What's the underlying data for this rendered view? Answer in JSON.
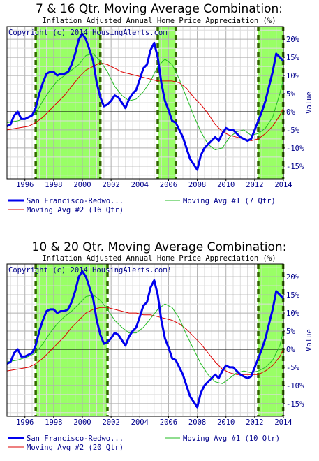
{
  "chart_data": [
    {
      "type": "line",
      "title": "7 & 16 Qtr. Moving Average Combination:",
      "subtitle": "Inflation Adjusted Annual Home Price Appreciation (%)",
      "copyright": "Copyright (c) 2014 HousingAlerts.com",
      "ylabel": "Value",
      "xlim": [
        1994.75,
        2014.0
      ],
      "ylim": [
        -18.5,
        23.5
      ],
      "x_ticks": [
        1996,
        1998,
        2000,
        2002,
        2004,
        2006,
        2008,
        2010,
        2012,
        2014
      ],
      "x_tick_labels": [
        "1996",
        "1998",
        "2000",
        "2002",
        "2004",
        "2006",
        "2008",
        "2010",
        "2012",
        "2014"
      ],
      "y_ticks": [
        -15,
        -10,
        -5,
        0,
        5,
        10,
        15,
        20
      ],
      "y_tick_labels": [
        "-15%",
        "-10%",
        "-5%",
        "0%",
        "5%",
        "10%",
        "15%",
        "20%"
      ],
      "green_zones": [
        [
          1996.75,
          2001.25
        ],
        [
          2005.25,
          2006.5
        ],
        [
          2012.25,
          2014.0
        ]
      ],
      "colors": {
        "main": "#0000ee",
        "ma1": "#22bb22",
        "ma2": "#dd0000",
        "zone": "#99ff66",
        "divider": "#336600"
      },
      "series": [
        {
          "name": "San Francisco-Redwo...",
          "color": "#0000ee",
          "x": [
            1994.75,
            1995.0,
            1995.25,
            1995.5,
            1995.75,
            1996.0,
            1996.25,
            1996.5,
            1996.75,
            1997.0,
            1997.25,
            1997.5,
            1997.75,
            1998.0,
            1998.25,
            1998.5,
            1998.75,
            1999.0,
            1999.25,
            1999.5,
            1999.75,
            2000.0,
            2000.25,
            2000.5,
            2000.75,
            2001.0,
            2001.25,
            2001.5,
            2001.75,
            2002.0,
            2002.25,
            2002.5,
            2002.75,
            2003.0,
            2003.25,
            2003.5,
            2003.75,
            2004.0,
            2004.25,
            2004.5,
            2004.75,
            2005.0,
            2005.25,
            2005.5,
            2005.75,
            2006.0,
            2006.25,
            2006.5,
            2006.75,
            2007.0,
            2007.25,
            2007.5,
            2007.75,
            2008.0,
            2008.25,
            2008.5,
            2008.75,
            2009.0,
            2009.25,
            2009.5,
            2009.75,
            2010.0,
            2010.25,
            2010.5,
            2010.75,
            2011.0,
            2011.25,
            2011.5,
            2011.75,
            2012.0,
            2012.25,
            2012.5,
            2012.75,
            2013.0,
            2013.25,
            2013.5,
            2013.75,
            2014.0
          ],
          "values": [
            -4,
            -3.5,
            -1,
            0,
            -2,
            -2,
            -1.5,
            -1,
            1,
            5,
            8,
            10.5,
            11,
            11,
            10,
            10.5,
            10.5,
            11,
            13,
            16,
            20,
            21.5,
            20,
            17,
            14,
            8,
            4,
            1.5,
            2,
            3,
            4.5,
            4,
            2.5,
            1,
            3.5,
            5,
            6,
            9,
            12,
            13,
            17,
            19,
            15,
            8,
            3,
            0.5,
            -2.5,
            -3,
            -5,
            -7,
            -10,
            -13,
            -14.5,
            -16,
            -12,
            -10,
            -9,
            -8,
            -7,
            -8,
            -6,
            -4.5,
            -5,
            -5,
            -6,
            -7,
            -7.5,
            -8,
            -7.5,
            -5,
            -2.5,
            0,
            3,
            7,
            11,
            16,
            15,
            14
          ]
        },
        {
          "name": "Moving Avg #1 (7 Qtr)",
          "color": "#22bb22",
          "x": [
            1994.75,
            1995.5,
            1996.25,
            1996.75,
            1997.25,
            1997.75,
            1998.25,
            1998.75,
            1999.25,
            1999.75,
            2000.25,
            2000.75,
            2001.25,
            2001.75,
            2002.25,
            2002.75,
            2003.25,
            2003.75,
            2004.25,
            2004.75,
            2005.25,
            2005.75,
            2006.25,
            2006.75,
            2007.25,
            2007.75,
            2008.25,
            2008.75,
            2009.25,
            2009.75,
            2010.25,
            2010.75,
            2011.25,
            2011.75,
            2012.25,
            2012.75,
            2013.25,
            2013.75,
            2014.0
          ],
          "values": [
            -3,
            -2.5,
            -1.5,
            -0.5,
            3,
            6,
            8.5,
            10,
            11.5,
            13,
            15.5,
            16,
            14,
            11,
            7,
            4.5,
            3,
            3.5,
            5.5,
            8.5,
            12.5,
            14.5,
            13,
            9,
            4,
            -1,
            -5.5,
            -9,
            -10.5,
            -10,
            -7,
            -5.5,
            -5,
            -6.5,
            -6,
            -4.5,
            -1.5,
            5,
            9
          ]
        },
        {
          "name": "Moving Avg #2 (16 Qtr)",
          "color": "#dd0000",
          "x": [
            1994.75,
            1995.5,
            1996.25,
            1996.75,
            1997.25,
            1997.75,
            1998.25,
            1998.75,
            1999.25,
            1999.75,
            2000.25,
            2000.75,
            2001.25,
            2001.75,
            2002.25,
            2002.75,
            2003.25,
            2003.75,
            2004.25,
            2004.75,
            2005.25,
            2005.75,
            2006.25,
            2006.75,
            2007.25,
            2007.75,
            2008.25,
            2008.75,
            2009.25,
            2009.75,
            2010.25,
            2010.75,
            2011.25,
            2011.75,
            2012.25,
            2012.75,
            2013.25,
            2013.75,
            2014.0
          ],
          "values": [
            -5,
            -4.5,
            -4,
            -3,
            -1.5,
            0.5,
            2.5,
            4.5,
            7,
            9.5,
            11.5,
            12.5,
            13.5,
            13,
            12,
            11,
            10.5,
            10,
            9.5,
            9,
            8.5,
            8.5,
            8.5,
            8,
            6.5,
            4,
            2,
            -0.5,
            -3.5,
            -5.5,
            -6.5,
            -7,
            -7.5,
            -8,
            -7.5,
            -6,
            -4,
            -1,
            1
          ]
        }
      ]
    },
    {
      "type": "line",
      "title": "10 & 20 Qtr. Moving Average Combination:",
      "subtitle": "Inflation Adjusted Annual Home Price Appreciation (%)",
      "copyright": "Copyright (c) 2014 HousingAlerts.com!",
      "ylabel": "Value",
      "xlim": [
        1994.75,
        2014.0
      ],
      "ylim": [
        -18.5,
        23.5
      ],
      "x_ticks": [
        1996,
        1998,
        2000,
        2002,
        2004,
        2006,
        2008,
        2010,
        2012,
        2014
      ],
      "x_tick_labels": [
        "1996",
        "1998",
        "2000",
        "2002",
        "2004",
        "2006",
        "2008",
        "2010",
        "2012",
        "2014"
      ],
      "y_ticks": [
        -15,
        -10,
        -5,
        0,
        5,
        10,
        15,
        20
      ],
      "y_tick_labels": [
        "-15%",
        "-10%",
        "-5%",
        "0%",
        "5%",
        "10%",
        "15%",
        "20%"
      ],
      "green_zones": [
        [
          1996.75,
          2001.75
        ],
        [
          2012.25,
          2014.0
        ]
      ],
      "colors": {
        "main": "#0000ee",
        "ma1": "#22bb22",
        "ma2": "#dd0000",
        "zone": "#99ff66",
        "divider": "#336600"
      },
      "series": [
        {
          "name": "San Francisco-Redwo...",
          "color": "#0000ee",
          "x": [
            1994.75,
            1995.0,
            1995.25,
            1995.5,
            1995.75,
            1996.0,
            1996.25,
            1996.5,
            1996.75,
            1997.0,
            1997.25,
            1997.5,
            1997.75,
            1998.0,
            1998.25,
            1998.5,
            1998.75,
            1999.0,
            1999.25,
            1999.5,
            1999.75,
            2000.0,
            2000.25,
            2000.5,
            2000.75,
            2001.0,
            2001.25,
            2001.5,
            2001.75,
            2002.0,
            2002.25,
            2002.5,
            2002.75,
            2003.0,
            2003.25,
            2003.5,
            2003.75,
            2004.0,
            2004.25,
            2004.5,
            2004.75,
            2005.0,
            2005.25,
            2005.5,
            2005.75,
            2006.0,
            2006.25,
            2006.5,
            2006.75,
            2007.0,
            2007.25,
            2007.5,
            2007.75,
            2008.0,
            2008.25,
            2008.5,
            2008.75,
            2009.0,
            2009.25,
            2009.5,
            2009.75,
            2010.0,
            2010.25,
            2010.5,
            2010.75,
            2011.0,
            2011.25,
            2011.5,
            2011.75,
            2012.0,
            2012.25,
            2012.5,
            2012.75,
            2013.0,
            2013.25,
            2013.5,
            2013.75,
            2014.0
          ],
          "values": [
            -4,
            -3.5,
            -1,
            0,
            -2,
            -2,
            -1.5,
            -1,
            1,
            5,
            8,
            10.5,
            11,
            11,
            10,
            10.5,
            10.5,
            11,
            13,
            16,
            20,
            21.5,
            20,
            17,
            14,
            8,
            4,
            1.5,
            2,
            3,
            4.5,
            4,
            2.5,
            1,
            3.5,
            5,
            6,
            9,
            12,
            13,
            17,
            19,
            15,
            8,
            3,
            0.5,
            -2.5,
            -3,
            -5,
            -7,
            -10,
            -13,
            -14.5,
            -16,
            -12,
            -10,
            -9,
            -8,
            -7,
            -8,
            -6,
            -4.5,
            -5,
            -5,
            -6,
            -7,
            -7.5,
            -8,
            -7.5,
            -5,
            -2.5,
            0,
            3,
            7,
            11,
            16,
            15,
            14
          ]
        },
        {
          "name": "Moving Avg #1 (10 Qtr)",
          "color": "#22bb22",
          "x": [
            1994.75,
            1995.5,
            1996.25,
            1996.75,
            1997.25,
            1997.75,
            1998.25,
            1998.75,
            1999.25,
            1999.75,
            2000.25,
            2000.75,
            2001.25,
            2001.75,
            2002.25,
            2002.75,
            2003.25,
            2003.75,
            2004.25,
            2004.75,
            2005.25,
            2005.75,
            2006.25,
            2006.75,
            2007.25,
            2007.75,
            2008.25,
            2008.75,
            2009.25,
            2009.75,
            2010.25,
            2010.75,
            2011.25,
            2011.75,
            2012.25,
            2012.75,
            2013.25,
            2013.75,
            2014.0
          ],
          "values": [
            -3.5,
            -3,
            -2,
            -1,
            1.5,
            4.5,
            7,
            9,
            10.5,
            12.5,
            14.5,
            15,
            13.5,
            11,
            8,
            6,
            4.5,
            4.5,
            6,
            8.5,
            11,
            12.5,
            11.5,
            8.5,
            4,
            0,
            -4,
            -7,
            -9,
            -9.5,
            -8,
            -6.5,
            -6,
            -6.5,
            -6,
            -5,
            -3,
            1,
            5
          ]
        },
        {
          "name": "Moving Avg #2 (20 Qtr)",
          "color": "#dd0000",
          "x": [
            1994.75,
            1995.5,
            1996.25,
            1996.75,
            1997.25,
            1997.75,
            1998.25,
            1998.75,
            1999.25,
            1999.75,
            2000.25,
            2000.75,
            2001.25,
            2001.75,
            2002.25,
            2002.75,
            2003.25,
            2003.75,
            2004.25,
            2004.75,
            2005.25,
            2005.75,
            2006.25,
            2006.75,
            2007.25,
            2007.75,
            2008.25,
            2008.75,
            2009.25,
            2009.75,
            2010.25,
            2010.75,
            2011.25,
            2011.75,
            2012.25,
            2012.75,
            2013.25,
            2013.75,
            2014.0
          ],
          "values": [
            -6,
            -5.5,
            -5,
            -4,
            -2.5,
            -0.5,
            1.5,
            3.5,
            6,
            8,
            10,
            11,
            11.5,
            11.5,
            11,
            10.5,
            10,
            10,
            9.5,
            9.5,
            9,
            8.5,
            8,
            7,
            5.5,
            3.5,
            1.5,
            -1,
            -3.5,
            -5.5,
            -6.5,
            -7,
            -7,
            -7,
            -7,
            -6,
            -4.5,
            -2,
            0
          ]
        }
      ]
    }
  ]
}
